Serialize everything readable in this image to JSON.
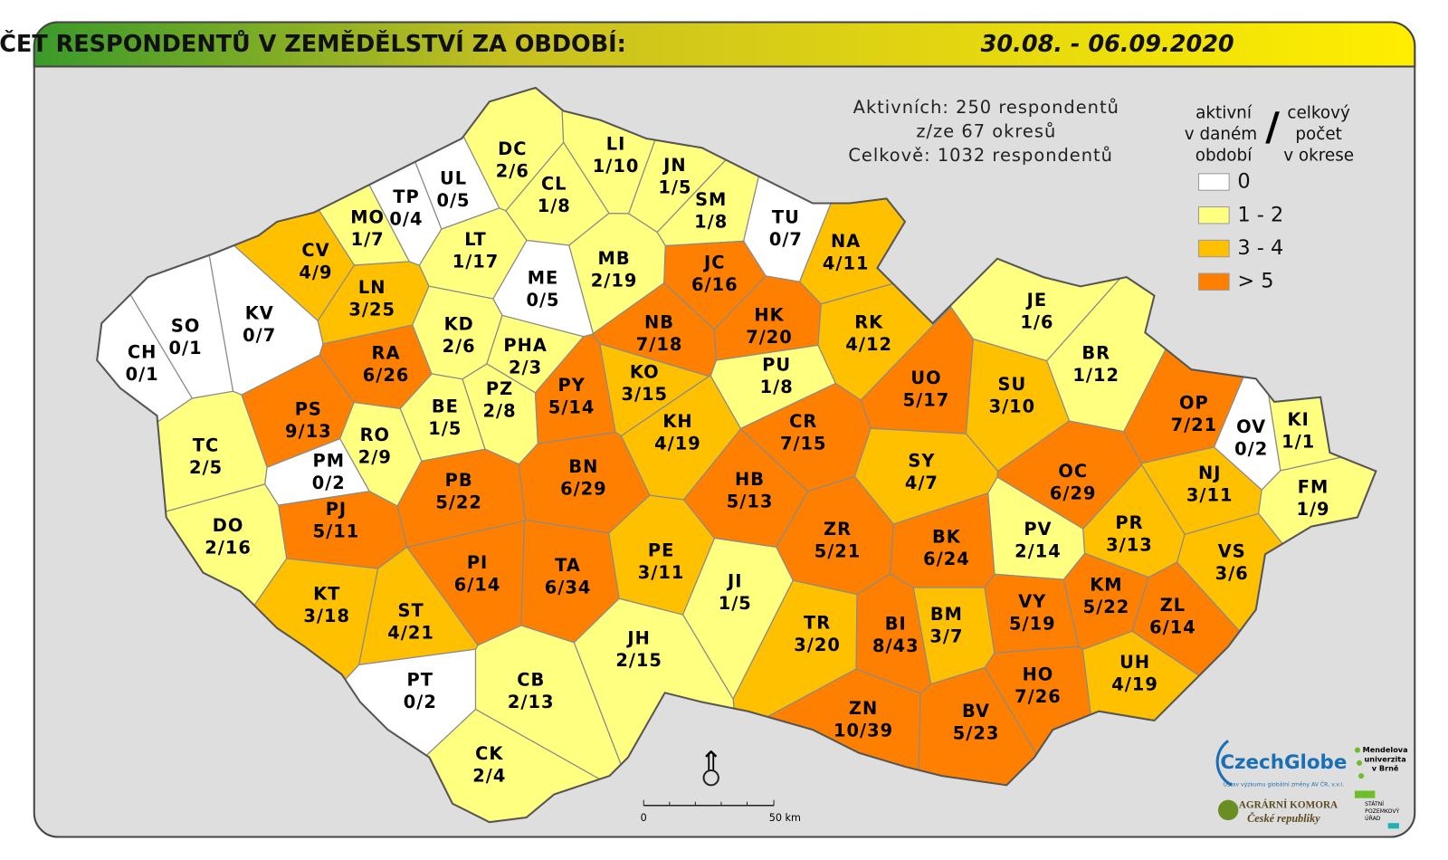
{
  "header": {
    "title": "POČET RESPONDENTŮ V ZEMĚDĚLSTVÍ ZA OBDOBÍ:",
    "period": "30.08. - 06.09.2020"
  },
  "info": [
    "Aktivních: 250 respondentů",
    "z/ze 67 okresů",
    "Celkově: 1032 respondentů"
  ],
  "legend": {
    "left": [
      "aktivní",
      "v daném",
      "období"
    ],
    "separator": "/",
    "right": [
      "celkový",
      "počet",
      "v okrese"
    ],
    "classes": [
      {
        "label": "0",
        "color": "#ffffff"
      },
      {
        "label": "1 - 2",
        "color": "#ffff80"
      },
      {
        "label": "3 - 4",
        "color": "#ffc000"
      },
      {
        "label": "> 5",
        "color": "#ff8000"
      }
    ]
  },
  "scale": {
    "start": "0",
    "end": "50 km"
  },
  "logos": {
    "czechglobe": "CzechGlobe",
    "czechglobe_sub": "Ústav výzkumu globální změny AV ČR, v.v.i.",
    "mendelu": [
      "Mendelova",
      "univerzita",
      "v Brně"
    ],
    "agrarni": [
      "AGRÁRNÍ KOMORA",
      "České republiky"
    ],
    "spu": [
      "STÁTNÍ",
      "POZEMKOVÝ",
      "ÚŘAD"
    ]
  },
  "districts": [
    {
      "code": "DC",
      "label": "2/6",
      "color": "#ffff80"
    },
    {
      "code": "LI",
      "label": "1/10",
      "color": "#ffff80"
    },
    {
      "code": "CL",
      "label": "1/8",
      "color": "#ffff80"
    },
    {
      "code": "JN",
      "label": "1/5",
      "color": "#ffff80"
    },
    {
      "code": "UL",
      "label": "0/5",
      "color": "#ffffff"
    },
    {
      "code": "TP",
      "label": "0/4",
      "color": "#ffffff"
    },
    {
      "code": "MO",
      "label": "1/7",
      "color": "#ffff80"
    },
    {
      "code": "SM",
      "label": "1/8",
      "color": "#ffff80"
    },
    {
      "code": "TU",
      "label": "0/7",
      "color": "#ffffff"
    },
    {
      "code": "NA",
      "label": "4/11",
      "color": "#ffc000"
    },
    {
      "code": "CV",
      "label": "4/9",
      "color": "#ffc000"
    },
    {
      "code": "LT",
      "label": "1/17",
      "color": "#ffff80"
    },
    {
      "code": "MB",
      "label": "2/19",
      "color": "#ffff80"
    },
    {
      "code": "JC",
      "label": "6/16",
      "color": "#ff8000"
    },
    {
      "code": "ME",
      "label": "0/5",
      "color": "#ffffff"
    },
    {
      "code": "LN",
      "label": "3/25",
      "color": "#ffc000"
    },
    {
      "code": "KV",
      "label": "0/7",
      "color": "#ffffff"
    },
    {
      "code": "SO",
      "label": "0/1",
      "color": "#ffffff"
    },
    {
      "code": "KD",
      "label": "2/6",
      "color": "#ffff80"
    },
    {
      "code": "NB",
      "label": "7/18",
      "color": "#ff8000"
    },
    {
      "code": "HK",
      "label": "7/20",
      "color": "#ff8000"
    },
    {
      "code": "RK",
      "label": "4/12",
      "color": "#ffc000"
    },
    {
      "code": "JE",
      "label": "1/6",
      "color": "#ffff80"
    },
    {
      "code": "CH",
      "label": "0/1",
      "color": "#ffffff"
    },
    {
      "code": "RA",
      "label": "6/26",
      "color": "#ff8000"
    },
    {
      "code": "PHA",
      "label": "2/3",
      "color": "#ffff80"
    },
    {
      "code": "BR",
      "label": "1/12",
      "color": "#ffff80"
    },
    {
      "code": "KO",
      "label": "3/15",
      "color": "#ffc000"
    },
    {
      "code": "PU",
      "label": "1/8",
      "color": "#ffff80"
    },
    {
      "code": "UO",
      "label": "5/17",
      "color": "#ff8000"
    },
    {
      "code": "SU",
      "label": "3/10",
      "color": "#ffc000"
    },
    {
      "code": "PS",
      "label": "9/13",
      "color": "#ff8000"
    },
    {
      "code": "BE",
      "label": "1/5",
      "color": "#ffff80"
    },
    {
      "code": "PZ",
      "label": "2/8",
      "color": "#ffff80"
    },
    {
      "code": "PY",
      "label": "5/14",
      "color": "#ff8000"
    },
    {
      "code": "OP",
      "label": "7/21",
      "color": "#ff8000"
    },
    {
      "code": "KI",
      "label": "1/1",
      "color": "#ffff80"
    },
    {
      "code": "KH",
      "label": "4/19",
      "color": "#ffc000"
    },
    {
      "code": "CR",
      "label": "7/15",
      "color": "#ff8000"
    },
    {
      "code": "OV",
      "label": "0/2",
      "color": "#ffffff"
    },
    {
      "code": "TC",
      "label": "2/5",
      "color": "#ffff80"
    },
    {
      "code": "RO",
      "label": "2/9",
      "color": "#ffff80"
    },
    {
      "code": "SY",
      "label": "4/7",
      "color": "#ffc000"
    },
    {
      "code": "BN",
      "label": "6/29",
      "color": "#ff8000"
    },
    {
      "code": "OC",
      "label": "6/29",
      "color": "#ff8000"
    },
    {
      "code": "PM",
      "label": "0/2",
      "color": "#ffffff"
    },
    {
      "code": "NJ",
      "label": "3/11",
      "color": "#ffc000"
    },
    {
      "code": "FM",
      "label": "1/9",
      "color": "#ffff80"
    },
    {
      "code": "PB",
      "label": "5/22",
      "color": "#ff8000"
    },
    {
      "code": "HB",
      "label": "5/13",
      "color": "#ff8000"
    },
    {
      "code": "PJ",
      "label": "5/11",
      "color": "#ff8000"
    },
    {
      "code": "DO",
      "label": "2/16",
      "color": "#ffff80"
    },
    {
      "code": "ZR",
      "label": "5/21",
      "color": "#ff8000"
    },
    {
      "code": "BK",
      "label": "6/24",
      "color": "#ff8000"
    },
    {
      "code": "PV",
      "label": "2/14",
      "color": "#ffff80"
    },
    {
      "code": "PR",
      "label": "3/13",
      "color": "#ffc000"
    },
    {
      "code": "PE",
      "label": "3/11",
      "color": "#ffc000"
    },
    {
      "code": "VS",
      "label": "3/6",
      "color": "#ffc000"
    },
    {
      "code": "PI",
      "label": "6/14",
      "color": "#ff8000"
    },
    {
      "code": "TA",
      "label": "6/34",
      "color": "#ff8000"
    },
    {
      "code": "JI",
      "label": "1/5",
      "color": "#ffff80"
    },
    {
      "code": "KM",
      "label": "5/22",
      "color": "#ff8000"
    },
    {
      "code": "KT",
      "label": "3/18",
      "color": "#ffc000"
    },
    {
      "code": "ZL",
      "label": "6/14",
      "color": "#ff8000"
    },
    {
      "code": "BM",
      "label": "3/7",
      "color": "#ffc000"
    },
    {
      "code": "VY",
      "label": "5/19",
      "color": "#ff8000"
    },
    {
      "code": "ST",
      "label": "4/21",
      "color": "#ffc000"
    },
    {
      "code": "BI",
      "label": "8/43",
      "color": "#ff8000"
    },
    {
      "code": "TR",
      "label": "3/20",
      "color": "#ffc000"
    },
    {
      "code": "JH",
      "label": "2/15",
      "color": "#ffff80"
    },
    {
      "code": "UH",
      "label": "4/19",
      "color": "#ffc000"
    },
    {
      "code": "HO",
      "label": "7/26",
      "color": "#ff8000"
    },
    {
      "code": "PT",
      "label": "0/2",
      "color": "#ffffff"
    },
    {
      "code": "CB",
      "label": "2/13",
      "color": "#ffff80"
    },
    {
      "code": "ZN",
      "label": "10/39",
      "color": "#ff8000"
    },
    {
      "code": "BV",
      "label": "5/23",
      "color": "#ff8000"
    },
    {
      "code": "CK",
      "label": "2/4",
      "color": "#ffff80"
    }
  ]
}
